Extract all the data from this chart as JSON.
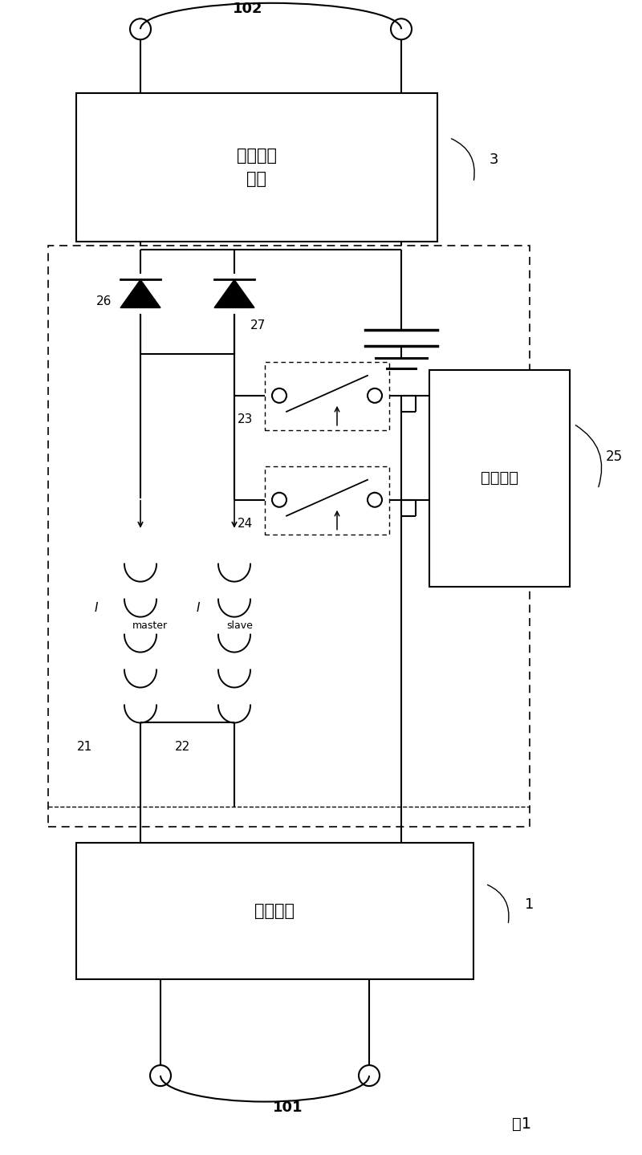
{
  "bg_color": "#ffffff",
  "fig_label": "图1",
  "box3_label": "电力转换\n单元",
  "box1_label": "整流单元",
  "box25_label": "控制单元",
  "label_3": "3",
  "label_1": "1",
  "label_25": "25",
  "label_101": "101",
  "label_102": "102",
  "label_21": "21",
  "label_22": "22",
  "label_23": "23",
  "label_24": "24",
  "label_26": "26",
  "label_27": "27"
}
